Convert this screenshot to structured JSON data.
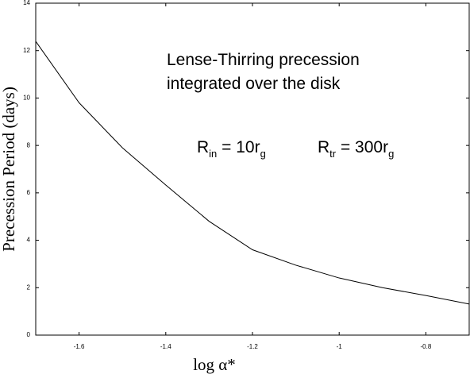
{
  "chart_data": {
    "type": "line",
    "x": [
      -1.7,
      -1.6,
      -1.5,
      -1.4,
      -1.3,
      -1.2,
      -1.1,
      -1.0,
      -0.9,
      -0.8,
      -0.7
    ],
    "series": [
      {
        "color": "#000000",
        "values": [
          12.39,
          9.8,
          7.9,
          6.33,
          4.8,
          3.6,
          2.95,
          2.41,
          2.0,
          1.67,
          1.31
        ]
      }
    ],
    "xlim": [
      -1.7,
      -0.7
    ],
    "xticks": [
      -1.6,
      -1.4,
      -1.2,
      -1,
      -0.8
    ],
    "ylim": [
      0,
      14
    ],
    "yticks": [
      0,
      2,
      4,
      6,
      8,
      10,
      12,
      14
    ],
    "xlabel": "log α*",
    "ylabel": "Precession Period (days)",
    "annotations": [
      {
        "parts": [
          {
            "text": "Lense-Thirring precession"
          }
        ]
      },
      {
        "parts": [
          {
            "text": "integrated over the disk"
          }
        ]
      },
      {
        "parts": [
          {
            "text": "R"
          },
          {
            "text": "in",
            "sub": true
          },
          {
            "text": " = 10r"
          },
          {
            "text": "g",
            "sub": true
          }
        ]
      },
      {
        "parts": [
          {
            "text": "R"
          },
          {
            "text": "tr",
            "sub": true
          },
          {
            "text": " = 300r"
          },
          {
            "text": "g",
            "sub": true
          }
        ]
      }
    ]
  }
}
